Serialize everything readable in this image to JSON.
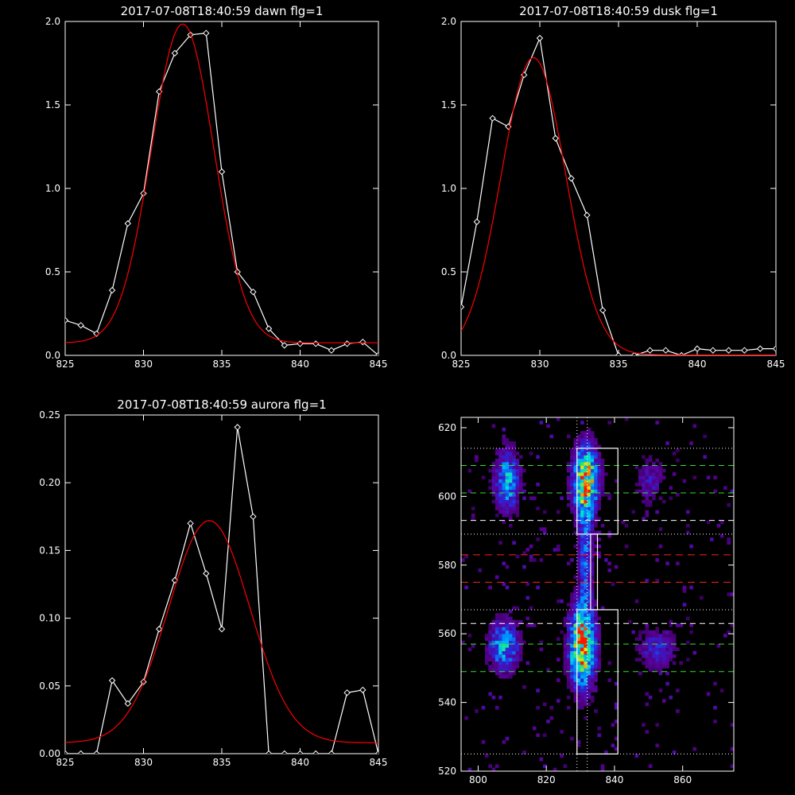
{
  "chart_data": [
    {
      "type": "line",
      "title": "2017-07-08T18:40:59 dawn flg=1",
      "xlim": [
        825,
        845
      ],
      "ylim": [
        0,
        2.0
      ],
      "xticks": [
        "825",
        "830",
        "835",
        "840",
        "845"
      ],
      "yticks": [
        "0.0",
        "0.5",
        "1.0",
        "1.5",
        "2.0"
      ],
      "series": [
        {
          "color": "#ffffff",
          "marker": "diamond",
          "x": [
            825,
            826,
            827,
            828,
            829,
            830,
            831,
            832,
            833,
            834,
            835,
            836,
            837,
            838,
            839,
            840,
            841,
            842,
            843,
            844,
            845
          ],
          "y": [
            0.21,
            0.18,
            0.13,
            0.39,
            0.79,
            0.97,
            1.58,
            1.81,
            1.92,
            1.93,
            1.1,
            0.5,
            0.38,
            0.16,
            0.06,
            0.07,
            0.07,
            0.03,
            0.07,
            0.08,
            0.0
          ]
        },
        {
          "color": "#ff0000",
          "fit": {
            "kind": "gaussian",
            "amp": 1.91,
            "center": 832.5,
            "sigma": 2.0,
            "offset": 0.075,
            "x0": 825,
            "x1": 845
          }
        }
      ]
    },
    {
      "type": "line",
      "title": "2017-07-08T18:40:59 dusk flg=1",
      "xlim": [
        825,
        845
      ],
      "ylim": [
        0,
        2.0
      ],
      "xticks": [
        "825",
        "830",
        "835",
        "840",
        "845"
      ],
      "yticks": [
        "0.0",
        "0.5",
        "1.0",
        "1.5",
        "2.0"
      ],
      "series": [
        {
          "color": "#ffffff",
          "marker": "diamond",
          "x": [
            825,
            826,
            827,
            828,
            829,
            830,
            831,
            832,
            833,
            834,
            835,
            836,
            837,
            838,
            839,
            840,
            841,
            842,
            843,
            844,
            845
          ],
          "y": [
            0.29,
            0.8,
            1.42,
            1.37,
            1.68,
            1.9,
            1.3,
            1.06,
            0.84,
            0.27,
            0.0,
            0.0,
            0.03,
            0.03,
            0.0,
            0.04,
            0.03,
            0.03,
            0.03,
            0.04,
            0.04
          ]
        },
        {
          "color": "#ff0000",
          "fit": {
            "kind": "gaussian",
            "amp": 1.78,
            "center": 829.6,
            "sigma": 2.05,
            "offset": 0.003,
            "x0": 825,
            "x1": 845
          }
        }
      ]
    },
    {
      "type": "line",
      "title": "2017-07-08T18:40:59 aurora flg=1",
      "xlim": [
        825,
        845
      ],
      "ylim": [
        0,
        0.25
      ],
      "xticks": [
        "825",
        "830",
        "835",
        "840",
        "845"
      ],
      "yticks": [
        "0.00",
        "0.05",
        "0.10",
        "0.15",
        "0.20",
        "0.25"
      ],
      "series": [
        {
          "color": "#ffffff",
          "marker": "diamond",
          "x": [
            825,
            826,
            827,
            828,
            829,
            830,
            831,
            832,
            833,
            834,
            835,
            836,
            837,
            838,
            839,
            840,
            841,
            842,
            843,
            844,
            845
          ],
          "y": [
            0.0,
            0.0,
            0.0,
            0.054,
            0.037,
            0.053,
            0.092,
            0.128,
            0.17,
            0.133,
            0.092,
            0.241,
            0.175,
            0.0,
            0.0,
            0.0,
            0.0,
            0.0,
            0.045,
            0.047,
            0.0
          ]
        },
        {
          "color": "#ff0000",
          "fit": {
            "kind": "gaussian",
            "amp": 0.164,
            "center": 834.2,
            "sigma": 2.6,
            "offset": 0.008,
            "x0": 825,
            "x1": 845
          }
        }
      ]
    },
    {
      "type": "heatmap",
      "title": "",
      "xlim": [
        795,
        875
      ],
      "ylim": [
        520,
        623
      ],
      "xticks": [
        "800",
        "820",
        "840",
        "860"
      ],
      "yticks": [
        "520",
        "540",
        "560",
        "580",
        "600",
        "620"
      ],
      "vlines_dotted": [
        829,
        832
      ],
      "hlines_dotted": [
        525,
        567,
        589,
        614
      ],
      "hlines_green_dashed": [
        549,
        557,
        601,
        609
      ],
      "hlines_white_dashed": [
        563,
        593
      ],
      "hlines_red_dashed": [
        575,
        583
      ],
      "boxes": [
        {
          "x0": 829,
          "x1": 841,
          "y0": 589,
          "y1": 614
        },
        {
          "x0": 829,
          "x1": 841,
          "y0": 525,
          "y1": 567
        },
        {
          "x0": 833,
          "x1": 835,
          "y0": 567,
          "y1": 589
        }
      ],
      "blobs": [
        {
          "x": 808,
          "y": 604,
          "sx": 2.5,
          "sy": 6,
          "amp": 0.5
        },
        {
          "x": 807,
          "y": 556,
          "sx": 3,
          "sy": 5,
          "amp": 0.5
        },
        {
          "x": 831,
          "y": 604,
          "sx": 2.5,
          "sy": 7,
          "amp": 0.85
        },
        {
          "x": 830,
          "y": 556,
          "sx": 2.5,
          "sy": 8,
          "amp": 0.95
        },
        {
          "x": 831,
          "y": 583,
          "sx": 1.5,
          "sy": 10,
          "amp": 0.35
        },
        {
          "x": 852,
          "y": 555,
          "sx": 4,
          "sy": 4,
          "amp": 0.25
        },
        {
          "x": 850,
          "y": 604,
          "sx": 3,
          "sy": 5,
          "amp": 0.2
        }
      ]
    }
  ]
}
